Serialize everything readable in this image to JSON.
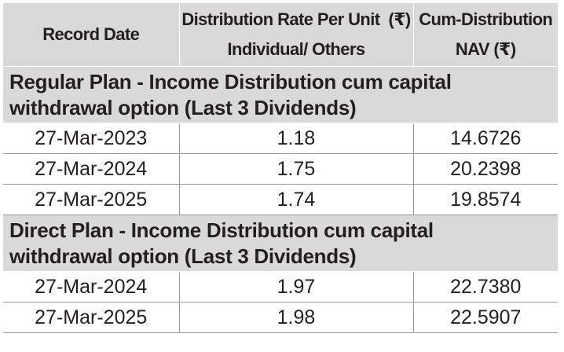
{
  "header": {
    "col1": "Record Date",
    "col2_line1": "Distribution Rate Per Unit  (₹)",
    "col2_line2": "Individual/ Others",
    "col3_line1": "Cum-Distribution",
    "col3_line2": "NAV (₹)"
  },
  "sections": [
    {
      "title_line1": "Regular Plan - Income Distribution cum capital",
      "title_line2": "withdrawal option (Last 3 Dividends)",
      "rows": [
        {
          "date": "27-Mar-2023",
          "rate": "1.18",
          "nav": "14.6726"
        },
        {
          "date": "27-Mar-2024",
          "rate": "1.75",
          "nav": "20.2398"
        },
        {
          "date": "27-Mar-2025",
          "rate": "1.74",
          "nav": "19.8574"
        }
      ]
    },
    {
      "title_line1": "Direct Plan - Income Distribution cum capital",
      "title_line2": "withdrawal option (Last 3 Dividends)",
      "rows": [
        {
          "date": "27-Mar-2024",
          "rate": "1.97",
          "nav": "22.7380"
        },
        {
          "date": "27-Mar-2025",
          "rate": "1.98",
          "nav": "22.5907"
        }
      ]
    }
  ]
}
